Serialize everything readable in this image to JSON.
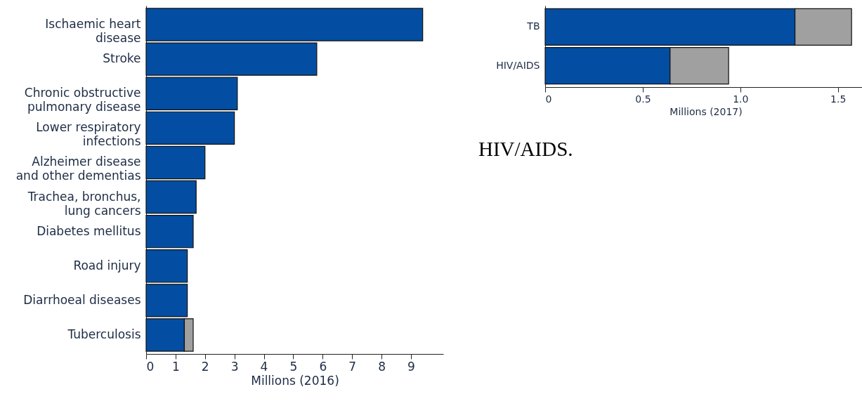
{
  "chart_data": [
    {
      "type": "bar",
      "orientation": "horizontal",
      "stacked": true,
      "categories": [
        "Ischaemic heart disease",
        "Stroke",
        "Chronic obstructive pulmonary disease",
        "Lower respiratory infections",
        "Alzheimer disease and other dementias",
        "Trachea, bronchus, lung cancers",
        "Diabetes mellitus",
        "Road injury",
        "Diarrhoeal diseases",
        "Tuberculosis"
      ],
      "series": [
        {
          "color": "#034ea2",
          "values": [
            9.4,
            5.8,
            3.1,
            3.0,
            2.0,
            1.7,
            1.6,
            1.4,
            1.4,
            1.3
          ]
        },
        {
          "color": "#a0a0a0",
          "values": [
            null,
            null,
            null,
            null,
            null,
            null,
            null,
            null,
            null,
            0.3
          ]
        }
      ],
      "xlim": [
        0,
        10.1
      ],
      "xticks": [
        0,
        1,
        2,
        3,
        4,
        5,
        6,
        7,
        8,
        9
      ],
      "xlabel": "Millions (2016)"
    },
    {
      "type": "bar",
      "orientation": "horizontal",
      "stacked": true,
      "categories": [
        "TB",
        "HIV/AIDS"
      ],
      "series": [
        {
          "color": "#034ea2",
          "values": [
            1.28,
            0.64
          ]
        },
        {
          "color": "#a0a0a0",
          "values": [
            0.29,
            0.3
          ]
        }
      ],
      "xlim": [
        0,
        1.645
      ],
      "xticks": [
        0,
        0.5,
        {
          "value": 1,
          "label": "1.0"
        },
        1.5
      ],
      "xlabel": "Millions (2017)",
      "annotations": [
        "HIV/AIDS."
      ]
    }
  ]
}
